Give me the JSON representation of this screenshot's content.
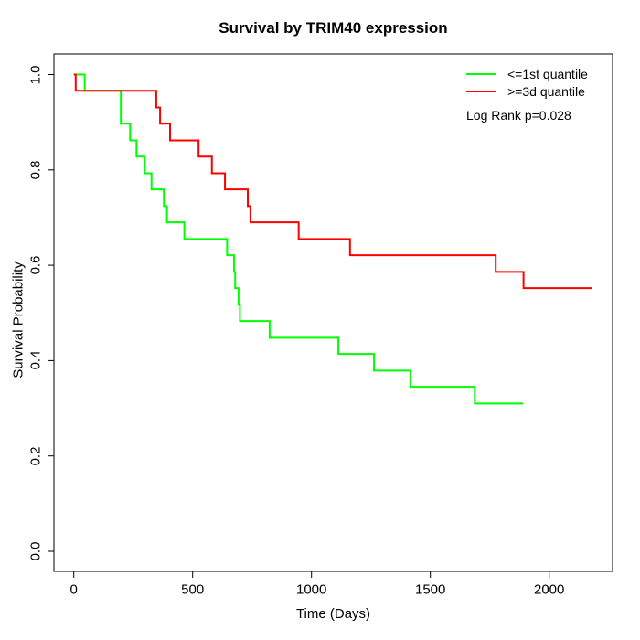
{
  "chart_data": {
    "type": "line",
    "subtype": "kaplan-meier-step",
    "title": "Survival by TRIM40 expression",
    "xlabel": "Time (Days)",
    "ylabel": "Survival Probability",
    "grid": false,
    "x_axis": {
      "range": [
        0,
        2266
      ],
      "tick_values": [
        0,
        500,
        1000,
        1500,
        2000
      ],
      "tick_labels": [
        "0",
        "500",
        "1000",
        "1500",
        "2000"
      ]
    },
    "y_axis": {
      "range": [
        0,
        1
      ],
      "tick_values": [
        0,
        0.2,
        0.4,
        0.6,
        0.8,
        1.0
      ],
      "tick_labels": [
        "0.0",
        "0.2",
        "0.4",
        "0.6",
        "0.8",
        "1.0"
      ]
    },
    "legend": {
      "position": "top-right",
      "entries": [
        {
          "label": "<=1st quantile",
          "color": "#00FF00"
        },
        {
          "label": ">=3d quantile",
          "color": "#FF0000"
        }
      ]
    },
    "annotation": "Log Rank p=0.028",
    "series": [
      {
        "name": "<=1st quantile",
        "color": "#00FF00",
        "start": [
          0,
          1.0
        ],
        "end_time": 1890,
        "steps": [
          [
            46,
            0.966
          ],
          [
            198,
            0.897
          ],
          [
            237,
            0.862
          ],
          [
            264,
            0.828
          ],
          [
            298,
            0.793
          ],
          [
            327,
            0.759
          ],
          [
            379,
            0.724
          ],
          [
            392,
            0.69
          ],
          [
            465,
            0.655
          ],
          [
            645,
            0.621
          ],
          [
            674,
            0.586
          ],
          [
            679,
            0.552
          ],
          [
            693,
            0.517
          ],
          [
            699,
            0.483
          ],
          [
            824,
            0.448
          ],
          [
            1113,
            0.414
          ],
          [
            1263,
            0.379
          ],
          [
            1416,
            0.345
          ],
          [
            1687,
            0.31
          ]
        ]
      },
      {
        "name": ">=3d quantile",
        "color": "#FF0000",
        "start": [
          0,
          1.0
        ],
        "end_time": 2181,
        "steps": [
          [
            8,
            0.966
          ],
          [
            347,
            0.931
          ],
          [
            363,
            0.897
          ],
          [
            405,
            0.862
          ],
          [
            525,
            0.828
          ],
          [
            581,
            0.793
          ],
          [
            636,
            0.759
          ],
          [
            732,
            0.724
          ],
          [
            743,
            0.69
          ],
          [
            946,
            0.655
          ],
          [
            1162,
            0.621
          ],
          [
            1775,
            0.586
          ],
          [
            1892,
            0.552
          ]
        ]
      }
    ]
  }
}
